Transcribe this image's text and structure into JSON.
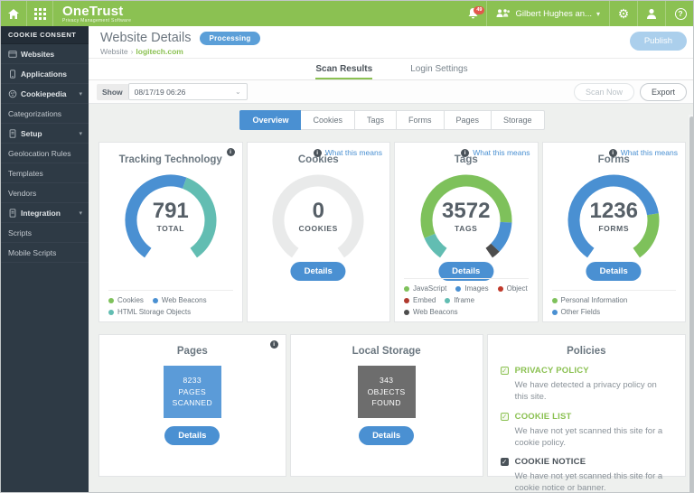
{
  "topbar": {
    "brand": "OneTrust",
    "brand_tagline": "Privacy Management Software",
    "notification_count": "49",
    "user_name": "Gilbert Hughes an...",
    "icons": [
      "home-icon",
      "apps-grid-icon",
      "bell-icon",
      "users-icon",
      "gear-icon",
      "user-icon",
      "help-icon"
    ],
    "brand_color": "#8bc152"
  },
  "sidebar": {
    "header": "COOKIE CONSENT",
    "items": [
      {
        "label": "Websites",
        "icon": "browser",
        "type": "top"
      },
      {
        "label": "Applications",
        "icon": "mobile",
        "type": "top"
      },
      {
        "label": "Cookiepedia",
        "icon": "cookie",
        "type": "group",
        "expandable": true
      },
      {
        "label": "Categorizations",
        "type": "sub"
      },
      {
        "label": "Setup",
        "icon": "doc",
        "type": "group",
        "expandable": true
      },
      {
        "label": "Geolocation Rules",
        "type": "sub"
      },
      {
        "label": "Templates",
        "type": "sub"
      },
      {
        "label": "Vendors",
        "type": "sub"
      },
      {
        "label": "Integration",
        "icon": "doc",
        "type": "group",
        "expandable": true
      },
      {
        "label": "Scripts",
        "type": "sub"
      },
      {
        "label": "Mobile Scripts",
        "type": "sub"
      }
    ]
  },
  "header": {
    "title": "Website Details",
    "status_badge": "Processing",
    "breadcrumb_root": "Website",
    "breadcrumb_current": "logitech.com",
    "publish_label": "Publish"
  },
  "tabs": [
    {
      "label": "Scan Results",
      "active": true
    },
    {
      "label": "Login Settings",
      "active": false
    }
  ],
  "toolbar": {
    "show_label": "Show",
    "scan_date": "08/17/19 06:26",
    "scan_now_label": "Scan Now",
    "export_label": "Export"
  },
  "subtabs": [
    {
      "label": "Overview",
      "active": true
    },
    {
      "label": "Cookies",
      "active": false
    },
    {
      "label": "Tags",
      "active": false
    },
    {
      "label": "Forms",
      "active": false
    },
    {
      "label": "Pages",
      "active": false
    },
    {
      "label": "Storage",
      "active": false
    }
  ],
  "cards": {
    "tracking": {
      "title": "Tracking Technology",
      "value": "791",
      "unit": "TOTAL",
      "segments": [
        {
          "color": "#4a90d2",
          "pct": 57,
          "label": "Web Beacons"
        },
        {
          "color": "#62bdb2",
          "pct": 43,
          "label": "HTML Storage Objects"
        }
      ],
      "legend": [
        {
          "color": "#7ec15b",
          "label": "Cookies"
        },
        {
          "color": "#4a90d2",
          "label": "Web Beacons"
        },
        {
          "color": "#62bdb2",
          "label": "HTML Storage Objects"
        }
      ]
    },
    "cookies": {
      "title": "Cookies",
      "value": "0",
      "unit": "COOKIES",
      "what_this_means": "What this means",
      "details_label": "Details",
      "segments": [
        {
          "color": "#e9eaea",
          "pct": 100,
          "label": "None"
        }
      ]
    },
    "tags": {
      "title": "Tags",
      "value": "3572",
      "unit": "TAGS",
      "what_this_means": "What this means",
      "details_label": "Details",
      "segments": [
        {
          "color": "#62bdb2",
          "pct": 11,
          "label": "Iframe"
        },
        {
          "color": "#7ec15b",
          "pct": 71,
          "label": "JavaScript"
        },
        {
          "color": "#4a90d2",
          "pct": 14,
          "label": "Images"
        },
        {
          "color": "#4d4d4d",
          "pct": 4,
          "label": "Web Beacons"
        }
      ],
      "legend": [
        {
          "color": "#7ec15b",
          "label": "JavaScript"
        },
        {
          "color": "#4a90d2",
          "label": "Images"
        },
        {
          "color": "#c0392b",
          "label": "Object"
        },
        {
          "color": "#b03a2e",
          "label": "Embed"
        },
        {
          "color": "#62bdb2",
          "label": "Iframe"
        },
        {
          "color": "#4d4d4d",
          "label": "Web Beacons"
        }
      ]
    },
    "forms": {
      "title": "Forms",
      "value": "1236",
      "unit": "FORMS",
      "what_this_means": "What this means",
      "details_label": "Details",
      "segments": [
        {
          "color": "#4a90d2",
          "pct": 78,
          "label": "Other Fields"
        },
        {
          "color": "#7ec15b",
          "pct": 22,
          "label": "Personal Information"
        }
      ],
      "legend": [
        {
          "color": "#7ec15b",
          "label": "Personal Information"
        },
        {
          "color": "#4a90d2",
          "label": "Other Fields"
        }
      ]
    },
    "pages": {
      "title": "Pages",
      "lines": [
        "8233",
        "PAGES",
        "SCANNED"
      ],
      "details_label": "Details",
      "box_color": "#5b9bd8"
    },
    "local_storage": {
      "title": "Local Storage",
      "lines": [
        "343",
        "OBJECTS",
        "FOUND"
      ],
      "details_label": "Details",
      "box_color": "#6d6d6d"
    },
    "policies": {
      "title": "Policies",
      "items": [
        {
          "label": "PRIVACY POLICY",
          "desc": "We have detected a privacy policy on this site.",
          "state": "green"
        },
        {
          "label": "COOKIE LIST",
          "desc": "We have not yet scanned this site for a cookie policy.",
          "state": "green"
        },
        {
          "label": "COOKIE NOTICE",
          "desc": "We have not yet scanned this site for a cookie notice or banner.",
          "state": "dark"
        }
      ]
    }
  }
}
